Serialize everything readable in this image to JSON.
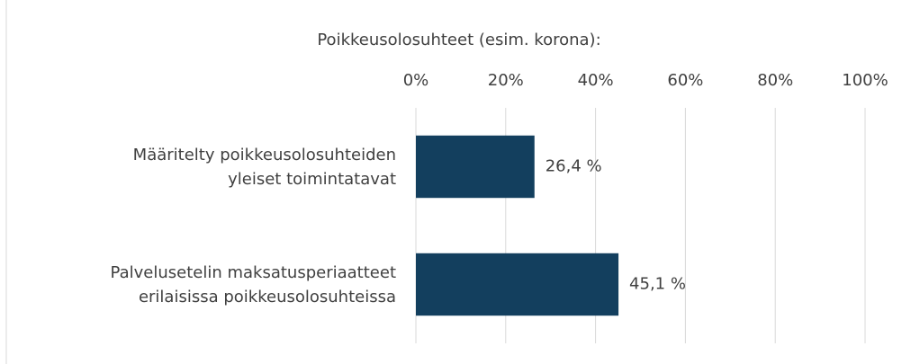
{
  "chart_data": {
    "type": "bar",
    "orientation": "horizontal",
    "title": "Poikkeusolosuhteet (esim. korona):",
    "categories": [
      "Määritelty poikkeusolosuhteiden\nyleiset toimintatavat",
      "Palvelusetelin maksatusperiaatteet\nerilaisissa poikkeusolosuhteissa"
    ],
    "values": [
      26.4,
      45.1
    ],
    "value_labels": [
      "26,4 %",
      "45,1 %"
    ],
    "color": "#133f5e",
    "xlim": [
      0,
      100
    ],
    "xticks": [
      {
        "value": 0,
        "label": "0%"
      },
      {
        "value": 20,
        "label": "20%"
      },
      {
        "value": 40,
        "label": "40%"
      },
      {
        "value": 60,
        "label": "60%"
      },
      {
        "value": 80,
        "label": "80%"
      },
      {
        "value": 100,
        "label": "100%"
      }
    ],
    "grid": true
  }
}
